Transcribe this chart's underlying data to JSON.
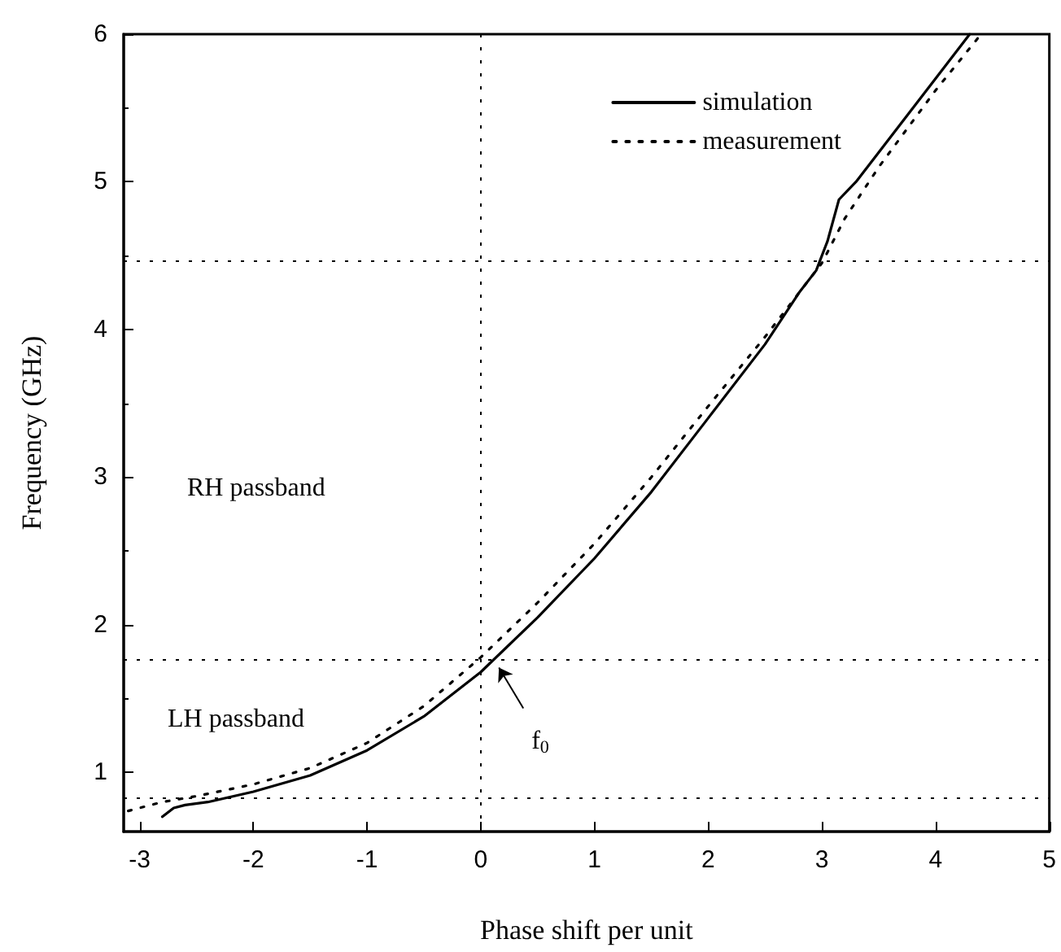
{
  "chart_data": {
    "type": "line",
    "xlabel": "Phase shift per unit",
    "ylabel": "Frequency (GHz)",
    "xlim": [
      -3.14,
      5
    ],
    "ylim": [
      0.6,
      6
    ],
    "xticks": [
      -3,
      -2,
      -1,
      0,
      1,
      2,
      3,
      4,
      5
    ],
    "yticks": [
      1,
      2,
      3,
      4,
      5,
      6
    ],
    "grid": false,
    "legend": "top right",
    "marker": "none",
    "series": [
      {
        "name": "simulation",
        "color": "#000000",
        "line_style": "solid",
        "x": [
          -2.8,
          -2.7,
          -2.6,
          -2.4,
          -2.0,
          -1.5,
          -1.0,
          -0.5,
          0.0,
          0.5,
          1.0,
          1.5,
          2.0,
          2.5,
          2.8,
          2.95,
          3.05,
          3.15,
          3.3,
          3.5,
          4.0,
          4.3
        ],
        "values": [
          0.7,
          0.76,
          0.78,
          0.8,
          0.87,
          0.98,
          1.15,
          1.38,
          1.68,
          2.05,
          2.45,
          2.9,
          3.4,
          3.9,
          4.25,
          4.4,
          4.6,
          4.88,
          5.0,
          5.2,
          5.7,
          6.0
        ]
      },
      {
        "name": "measurement",
        "color": "#000000",
        "line_style": "dotted",
        "x": [
          -3.1,
          -2.8,
          -2.5,
          -2.0,
          -1.5,
          -1.0,
          -0.5,
          0.0,
          0.5,
          1.0,
          1.5,
          2.0,
          2.5,
          3.0,
          3.2,
          3.5,
          4.0,
          4.4
        ],
        "values": [
          0.74,
          0.8,
          0.84,
          0.92,
          1.03,
          1.2,
          1.45,
          1.78,
          2.15,
          2.55,
          3.0,
          3.48,
          3.95,
          4.45,
          4.75,
          5.1,
          5.62,
          6.0
        ]
      }
    ],
    "ref_lines": [
      {
        "axis": "x",
        "value": 0,
        "line_style": "dotted",
        "color": "#000000"
      },
      {
        "axis": "y",
        "value": 4.46,
        "line_style": "dotted",
        "color": "#000000"
      },
      {
        "axis": "y",
        "value": 1.76,
        "line_style": "dotted",
        "color": "#000000"
      },
      {
        "axis": "y",
        "value": 0.83,
        "line_style": "dotted",
        "color": "#000000"
      }
    ],
    "annotations": [
      "RH passband",
      "LH passband",
      {
        "text": "f$_{0}$",
        "x": 0.16,
        "y": 1.71
      }
    ]
  }
}
